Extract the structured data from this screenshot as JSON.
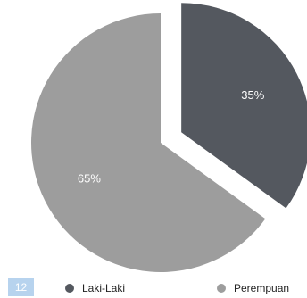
{
  "page_badge": "12",
  "chart_data": {
    "type": "pie",
    "title": "",
    "categories": [
      "Laki-Laki",
      "Perempuan"
    ],
    "values": [
      35,
      65
    ],
    "value_labels": [
      "35%",
      "65%"
    ],
    "colors": [
      "#54585f",
      "#9d9d9d"
    ],
    "exploded": [
      true,
      false
    ],
    "legend": {
      "placement": "bottom",
      "entries": [
        "Laki-Laki",
        "Perempuan"
      ]
    }
  }
}
